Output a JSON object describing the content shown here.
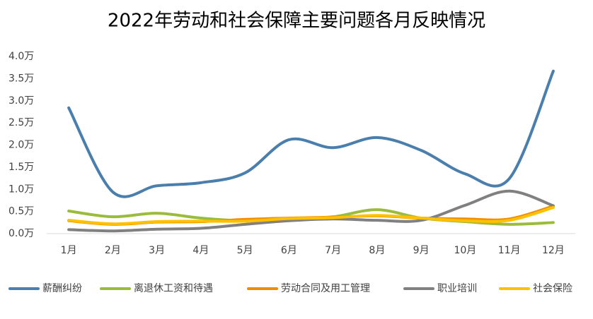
{
  "chart_data": {
    "type": "line",
    "title": "2022年劳动和社会保障主要问题各月反映情况",
    "categories": [
      "1月",
      "2月",
      "3月",
      "4月",
      "5月",
      "6月",
      "7月",
      "8月",
      "9月",
      "10月",
      "11月",
      "12月"
    ],
    "series": [
      {
        "name": "薪酬纠纷",
        "color": "#4a7fad",
        "values": [
          2.84,
          0.94,
          1.08,
          1.15,
          1.37,
          2.12,
          1.94,
          2.17,
          1.88,
          1.35,
          1.24,
          3.67
        ]
      },
      {
        "name": "离退休工资和待遇",
        "color": "#9bbb3b",
        "values": [
          0.51,
          0.38,
          0.46,
          0.35,
          0.29,
          0.33,
          0.38,
          0.54,
          0.35,
          0.27,
          0.21,
          0.25
        ]
      },
      {
        "name": "劳动合同及用工管理",
        "color": "#f08c00",
        "values": [
          0.29,
          0.21,
          0.26,
          0.27,
          0.32,
          0.35,
          0.37,
          0.4,
          0.35,
          0.33,
          0.33,
          0.62
        ]
      },
      {
        "name": "职业培训",
        "color": "#808080",
        "values": [
          0.09,
          0.06,
          0.1,
          0.12,
          0.21,
          0.29,
          0.33,
          0.3,
          0.3,
          0.64,
          0.96,
          0.63
        ]
      },
      {
        "name": "社会保险",
        "color": "#ffc000",
        "values": [
          0.3,
          0.22,
          0.27,
          0.28,
          0.28,
          0.34,
          0.36,
          0.41,
          0.35,
          0.29,
          0.3,
          0.59
        ]
      }
    ],
    "ylim": [
      0,
      4
    ],
    "yticks": [
      {
        "value": 0,
        "label": "0.0万"
      },
      {
        "value": 0.5,
        "label": "0.5万"
      },
      {
        "value": 1,
        "label": "1.0万"
      },
      {
        "value": 1.5,
        "label": "1.5万"
      },
      {
        "value": 2,
        "label": "2.0万"
      },
      {
        "value": 2.5,
        "label": "2.5万"
      },
      {
        "value": 3,
        "label": "3.0万"
      },
      {
        "value": 3.5,
        "label": "3.5万"
      },
      {
        "value": 4,
        "label": "4.0万"
      }
    ],
    "smooth": true
  }
}
